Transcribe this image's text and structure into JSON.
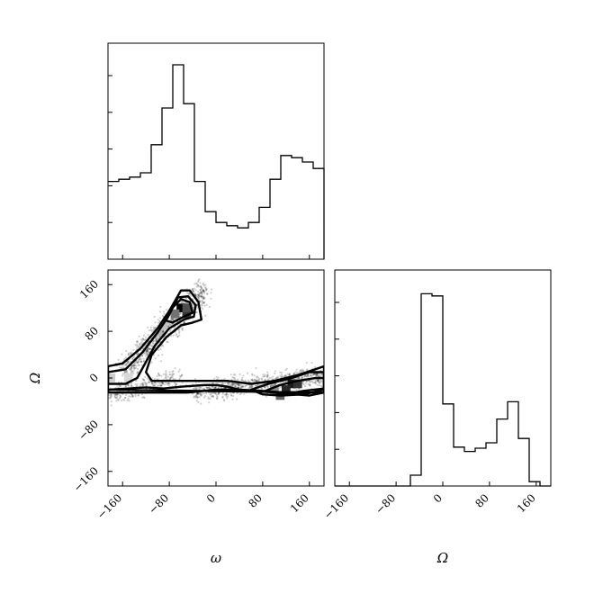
{
  "chart_data": [
    {
      "type": "histogram",
      "panel": "omega-marginal",
      "xlabel": "",
      "xlim": [
        -185,
        185
      ],
      "bin_edges": [
        -185,
        -166.5,
        -148,
        -129.5,
        -111,
        -92.5,
        -74,
        -55.5,
        -37,
        -18.5,
        0,
        18.5,
        37,
        55.5,
        74,
        92.5,
        111,
        129.5,
        148,
        166.5,
        185
      ],
      "counts": [
        0.36,
        0.37,
        0.38,
        0.4,
        0.53,
        0.7,
        0.9,
        0.72,
        0.36,
        0.22,
        0.17,
        0.155,
        0.145,
        0.17,
        0.24,
        0.37,
        0.48,
        0.47,
        0.45,
        0.42
      ],
      "ymax": 1.0,
      "grid": false
    },
    {
      "type": "histogram",
      "panel": "Omega-marginal",
      "xlim": [
        -185,
        185
      ],
      "bin_edges": [
        -185,
        -166.5,
        -148,
        -129.5,
        -111,
        -92.5,
        -74,
        -55.5,
        -37,
        -18.5,
        0,
        18.5,
        37,
        55.5,
        74,
        92.5,
        111,
        129.5,
        148,
        166.5,
        185
      ],
      "counts": [
        0,
        0,
        0,
        0,
        0,
        0,
        0,
        0.05,
        0.89,
        0.88,
        0.38,
        0.18,
        0.16,
        0.175,
        0.2,
        0.31,
        0.39,
        0.22,
        0.02,
        0
      ],
      "ymax": 1.0,
      "grid": false
    },
    {
      "type": "scatter",
      "panel": "joint-density",
      "xlabel": "ω",
      "ylabel": "Ω",
      "xlim": [
        -185,
        185
      ],
      "ylim": [
        -185,
        185
      ],
      "x_ticks": [
        -160,
        -80,
        0,
        80,
        160
      ],
      "y_ticks": [
        -160,
        -80,
        0,
        80,
        160
      ],
      "clusters": [
        {
          "x": [
            -160,
            -20
          ],
          "y": [
            10,
            150
          ],
          "count": 900,
          "spread": 12
        },
        {
          "x": [
            -40,
            185
          ],
          "y": [
            -25,
            5
          ],
          "count": 900,
          "spread": 8
        },
        {
          "x": [
            -185,
            -60
          ],
          "y": [
            -30,
            0
          ],
          "count": 350,
          "spread": 8
        }
      ],
      "density_cells": [
        {
          "x": -60,
          "y": 120,
          "level": 1.0
        },
        {
          "x": -50,
          "y": 110,
          "level": 0.8
        },
        {
          "x": -50,
          "y": 120,
          "level": 0.7
        },
        {
          "x": -70,
          "y": 110,
          "level": 0.55
        },
        {
          "x": 130,
          "y": -10,
          "level": 0.9
        },
        {
          "x": 140,
          "y": -10,
          "level": 0.8
        },
        {
          "x": 120,
          "y": -20,
          "level": 0.85
        },
        {
          "x": 110,
          "y": -30,
          "level": 0.6
        },
        {
          "x": 100,
          "y": -20,
          "level": 0.45
        },
        {
          "x": -100,
          "y": 80,
          "level": 0.3
        },
        {
          "x": -90,
          "y": 90,
          "level": 0.25
        },
        {
          "x": -180,
          "y": 0,
          "level": 0.2
        },
        {
          "x": -150,
          "y": 0,
          "level": 0.15
        }
      ],
      "contours": [
        [
          [
            -185,
            20
          ],
          [
            -160,
            25
          ],
          [
            -130,
            50
          ],
          [
            -100,
            85
          ],
          [
            -80,
            115
          ],
          [
            -60,
            150
          ],
          [
            -45,
            150
          ],
          [
            -30,
            130
          ],
          [
            -25,
            100
          ],
          [
            -40,
            95
          ],
          [
            -60,
            90
          ],
          [
            -85,
            70
          ],
          [
            -110,
            40
          ],
          [
            -120,
            10
          ],
          [
            -110,
            -5
          ],
          [
            -70,
            -5
          ],
          [
            -20,
            -5
          ],
          [
            20,
            -5
          ],
          [
            60,
            -10
          ],
          [
            100,
            -5
          ],
          [
            140,
            5
          ],
          [
            170,
            15
          ],
          [
            185,
            20
          ],
          [
            185,
            -25
          ],
          [
            160,
            -30
          ],
          [
            100,
            -25
          ],
          [
            40,
            -20
          ],
          [
            0,
            -20
          ],
          [
            -50,
            -25
          ],
          [
            -100,
            -25
          ],
          [
            -140,
            -25
          ],
          [
            -185,
            -25
          ]
        ],
        [
          [
            -185,
            10
          ],
          [
            -155,
            15
          ],
          [
            -125,
            45
          ],
          [
            -100,
            78
          ],
          [
            -82,
            105
          ],
          [
            -65,
            138
          ],
          [
            -48,
            140
          ],
          [
            -35,
            125
          ],
          [
            -38,
            105
          ],
          [
            -55,
            100
          ],
          [
            -80,
            85
          ],
          [
            -105,
            55
          ],
          [
            -135,
            0
          ],
          [
            -155,
            -10
          ],
          [
            -185,
            -10
          ]
        ],
        [
          [
            -185,
            -20
          ],
          [
            -150,
            -18
          ],
          [
            -120,
            -16
          ],
          [
            -90,
            -18
          ],
          [
            -60,
            -15
          ],
          [
            -20,
            -12
          ],
          [
            0,
            -12
          ],
          [
            20,
            -15
          ],
          [
            40,
            -20
          ],
          [
            80,
            -22
          ],
          [
            120,
            -25
          ],
          [
            160,
            -25
          ],
          [
            185,
            -25
          ]
        ],
        [
          [
            -90,
            100
          ],
          [
            -75,
            120
          ],
          [
            -60,
            135
          ],
          [
            -45,
            130
          ],
          [
            -40,
            112
          ],
          [
            -55,
            105
          ],
          [
            -75,
            95
          ],
          [
            -90,
            100
          ]
        ],
        [
          [
            60,
            -20
          ],
          [
            90,
            -10
          ],
          [
            130,
            0
          ],
          [
            160,
            10
          ],
          [
            185,
            10
          ],
          [
            185,
            -20
          ],
          [
            150,
            -28
          ],
          [
            110,
            -30
          ],
          [
            80,
            -28
          ],
          [
            60,
            -20
          ]
        ],
        [
          [
            85,
            -22
          ],
          [
            110,
            -12
          ],
          [
            140,
            -5
          ],
          [
            170,
            0
          ],
          [
            185,
            0
          ],
          [
            185,
            -18
          ],
          [
            150,
            -22
          ],
          [
            115,
            -28
          ],
          [
            85,
            -22
          ]
        ]
      ],
      "grid": false
    }
  ]
}
